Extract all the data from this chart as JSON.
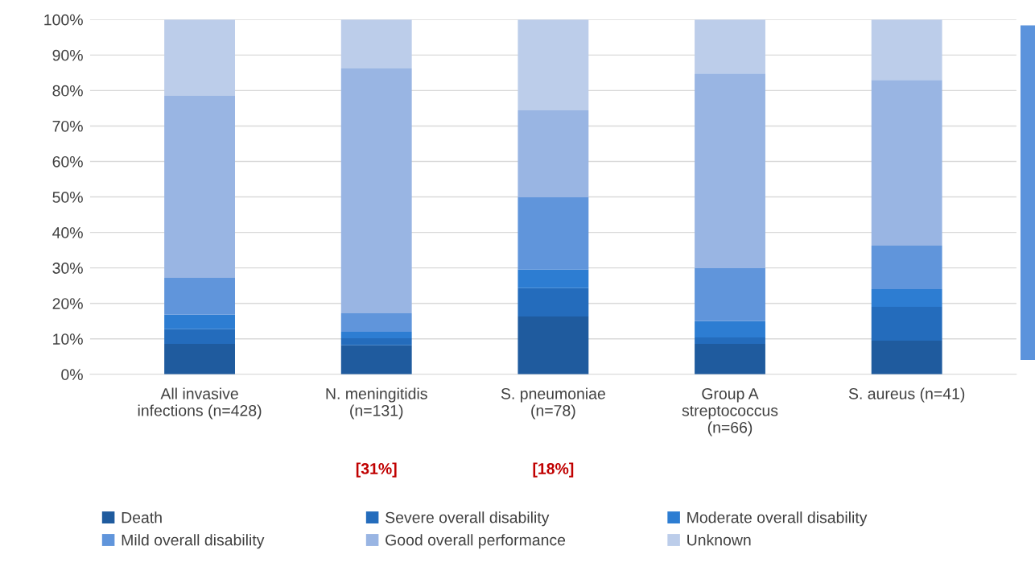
{
  "chart_data": {
    "type": "bar",
    "stacked": true,
    "categories": [
      "All invasive\ninfections (n=428)",
      "N. meningitidis\n(n=131)",
      "S. pneumoniae\n(n=78)",
      "Group A\nstreptococcus\n(n=66)",
      "S. aureus (n=41)"
    ],
    "series": [
      {
        "name": "Death",
        "color": "#1f5b9e",
        "values": [
          8.6,
          8.2,
          16.3,
          8.6,
          9.5
        ]
      },
      {
        "name": "Severe overall disability",
        "color": "#246cbc",
        "values": [
          4.1,
          2.0,
          8.0,
          1.8,
          9.5
        ]
      },
      {
        "name": "Moderate overall disability",
        "color": "#2d7dd2",
        "values": [
          4.1,
          1.8,
          5.2,
          4.6,
          5.0
        ]
      },
      {
        "name": "Mild overall disability",
        "color": "#6095db",
        "values": [
          10.4,
          5.2,
          20.4,
          14.9,
          12.3
        ]
      },
      {
        "name": "Good overall performance",
        "color": "#99b5e3",
        "values": [
          51.3,
          69.0,
          24.5,
          54.9,
          46.7
        ]
      },
      {
        "name": "Unknown",
        "color": "#bccdea",
        "values": [
          21.5,
          13.8,
          25.6,
          15.2,
          17.0
        ]
      }
    ],
    "ylim": [
      0,
      100
    ],
    "yticks": [
      {
        "value": 0,
        "label": "0%"
      },
      {
        "value": 10,
        "label": "10%"
      },
      {
        "value": 20,
        "label": "20%"
      },
      {
        "value": 30,
        "label": "30%"
      },
      {
        "value": 40,
        "label": "40%"
      },
      {
        "value": 50,
        "label": "50%"
      },
      {
        "value": 60,
        "label": "60%"
      },
      {
        "value": 70,
        "label": "70%"
      },
      {
        "value": 80,
        "label": "80%"
      },
      {
        "value": 90,
        "label": "90%"
      },
      {
        "value": 100,
        "label": "100%"
      }
    ],
    "grid": "y",
    "legend": "bottom",
    "annotations": [
      "[31%]",
      "[18%]"
    ]
  }
}
